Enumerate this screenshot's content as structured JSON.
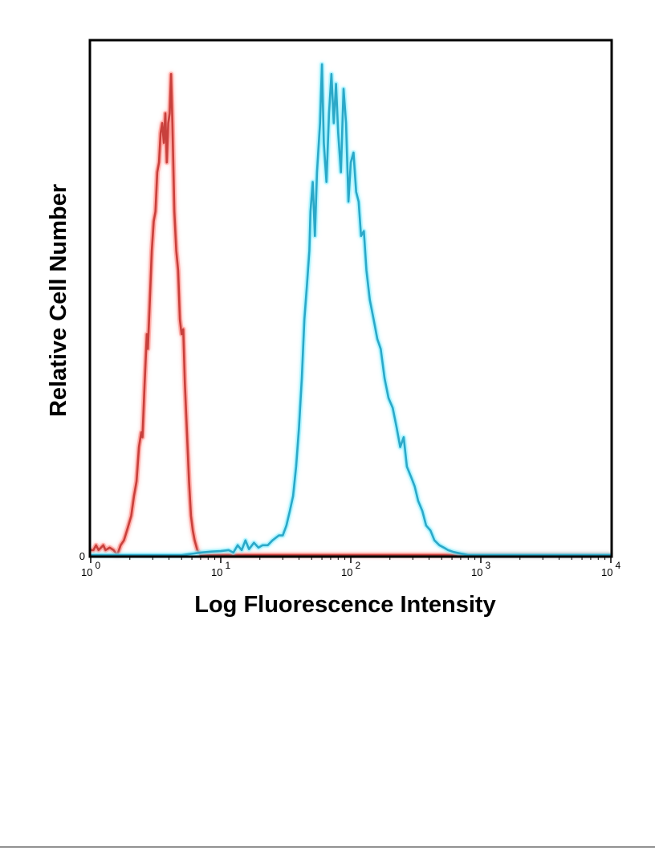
{
  "chart_data": {
    "type": "line",
    "title": "",
    "xlabel": "Log Fluorescence Intensity",
    "ylabel": "Relative Cell Number",
    "x_scale": "log",
    "xlim": [
      1,
      10000
    ],
    "ylim": [
      0,
      1.0
    ],
    "grid": false,
    "x_ticks": [
      {
        "value": 1,
        "base": "10",
        "exp": "0"
      },
      {
        "value": 10,
        "base": "10",
        "exp": "1"
      },
      {
        "value": 100,
        "base": "10",
        "exp": "2"
      },
      {
        "value": 1000,
        "base": "10",
        "exp": "3"
      },
      {
        "value": 10000,
        "base": "10",
        "exp": "4"
      }
    ],
    "y_ticks": [
      {
        "value": 0,
        "label": "0"
      }
    ],
    "series": [
      {
        "color": "#c8403c",
        "glow": "#ff7a70",
        "points": [
          [
            1.0,
            0.01
          ],
          [
            1.05,
            0.01
          ],
          [
            1.1,
            0.02
          ],
          [
            1.15,
            0.01
          ],
          [
            1.25,
            0.02
          ],
          [
            1.3,
            0.01
          ],
          [
            1.4,
            0.015
          ],
          [
            1.5,
            0.01
          ],
          [
            1.6,
            0.0
          ],
          [
            1.7,
            0.02
          ],
          [
            1.8,
            0.03
          ],
          [
            1.85,
            0.04
          ],
          [
            1.95,
            0.06
          ],
          [
            2.05,
            0.08
          ],
          [
            2.15,
            0.12
          ],
          [
            2.25,
            0.15
          ],
          [
            2.35,
            0.22
          ],
          [
            2.45,
            0.25
          ],
          [
            2.5,
            0.24
          ],
          [
            2.6,
            0.35
          ],
          [
            2.7,
            0.45
          ],
          [
            2.75,
            0.42
          ],
          [
            2.85,
            0.52
          ],
          [
            2.95,
            0.62
          ],
          [
            3.05,
            0.68
          ],
          [
            3.15,
            0.7
          ],
          [
            3.25,
            0.78
          ],
          [
            3.35,
            0.8
          ],
          [
            3.45,
            0.86
          ],
          [
            3.55,
            0.88
          ],
          [
            3.65,
            0.84
          ],
          [
            3.75,
            0.9
          ],
          [
            3.85,
            0.8
          ],
          [
            3.95,
            0.88
          ],
          [
            4.05,
            0.9
          ],
          [
            4.15,
            0.98
          ],
          [
            4.25,
            0.88
          ],
          [
            4.4,
            0.7
          ],
          [
            4.55,
            0.62
          ],
          [
            4.7,
            0.58
          ],
          [
            4.85,
            0.48
          ],
          [
            5.0,
            0.45
          ],
          [
            5.15,
            0.46
          ],
          [
            5.3,
            0.35
          ],
          [
            5.5,
            0.25
          ],
          [
            5.7,
            0.15
          ],
          [
            5.9,
            0.08
          ],
          [
            6.1,
            0.05
          ],
          [
            6.3,
            0.03
          ],
          [
            6.6,
            0.01
          ],
          [
            7.0,
            0.0
          ],
          [
            8,
            0.0
          ],
          [
            10,
            0.0
          ],
          [
            20,
            0.0
          ],
          [
            50,
            0.0
          ],
          [
            100,
            0.0
          ],
          [
            300,
            0.0
          ],
          [
            1000,
            0.0
          ],
          [
            10000,
            0.0
          ]
        ]
      },
      {
        "color": "#2ba8c8",
        "glow": "#7eeeff",
        "points": [
          [
            1.0,
            0.0
          ],
          [
            5,
            0.0
          ],
          [
            6.2,
            0.003
          ],
          [
            7.0,
            0.005
          ],
          [
            8.5,
            0.007
          ],
          [
            10.0,
            0.008
          ],
          [
            11.5,
            0.01
          ],
          [
            12.5,
            0.005
          ],
          [
            13.5,
            0.02
          ],
          [
            14.5,
            0.01
          ],
          [
            15.5,
            0.03
          ],
          [
            16.5,
            0.012
          ],
          [
            18,
            0.025
          ],
          [
            19.5,
            0.015
          ],
          [
            21,
            0.02
          ],
          [
            23,
            0.02
          ],
          [
            25,
            0.03
          ],
          [
            28,
            0.04
          ],
          [
            30,
            0.04
          ],
          [
            32,
            0.06
          ],
          [
            34,
            0.09
          ],
          [
            36,
            0.12
          ],
          [
            38,
            0.18
          ],
          [
            40,
            0.26
          ],
          [
            42,
            0.36
          ],
          [
            44,
            0.48
          ],
          [
            46,
            0.55
          ],
          [
            48,
            0.62
          ],
          [
            49,
            0.7
          ],
          [
            51,
            0.76
          ],
          [
            53,
            0.65
          ],
          [
            55,
            0.78
          ],
          [
            58,
            0.88
          ],
          [
            60,
            1.0
          ],
          [
            62,
            0.84
          ],
          [
            65,
            0.76
          ],
          [
            68,
            0.9
          ],
          [
            71,
            0.98
          ],
          [
            74,
            0.88
          ],
          [
            77,
            0.96
          ],
          [
            80,
            0.86
          ],
          [
            84,
            0.78
          ],
          [
            88,
            0.95
          ],
          [
            92,
            0.88
          ],
          [
            96,
            0.72
          ],
          [
            100,
            0.8
          ],
          [
            105,
            0.82
          ],
          [
            110,
            0.74
          ],
          [
            115,
            0.72
          ],
          [
            120,
            0.65
          ],
          [
            126,
            0.66
          ],
          [
            132,
            0.58
          ],
          [
            140,
            0.52
          ],
          [
            150,
            0.48
          ],
          [
            160,
            0.44
          ],
          [
            170,
            0.42
          ],
          [
            182,
            0.36
          ],
          [
            195,
            0.32
          ],
          [
            210,
            0.3
          ],
          [
            225,
            0.26
          ],
          [
            240,
            0.22
          ],
          [
            255,
            0.24
          ],
          [
            270,
            0.18
          ],
          [
            290,
            0.16
          ],
          [
            310,
            0.14
          ],
          [
            330,
            0.11
          ],
          [
            355,
            0.09
          ],
          [
            380,
            0.06
          ],
          [
            410,
            0.05
          ],
          [
            440,
            0.03
          ],
          [
            480,
            0.02
          ],
          [
            520,
            0.015
          ],
          [
            560,
            0.01
          ],
          [
            620,
            0.006
          ],
          [
            700,
            0.003
          ],
          [
            800,
            0.0
          ],
          [
            1000,
            0.0
          ],
          [
            10000,
            0.0
          ]
        ]
      }
    ]
  }
}
